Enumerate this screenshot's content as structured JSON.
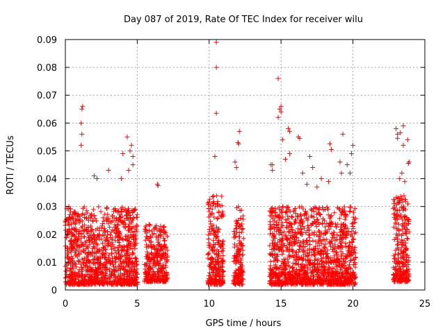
{
  "chart_data": {
    "type": "scatter",
    "title": "Day 087 of 2019, Rate Of TEC Index for receiver wilu",
    "xlabel": "GPS time / hours",
    "ylabel": "ROTI / TECUs",
    "xlim": [
      0,
      25
    ],
    "ylim": [
      0,
      0.09
    ],
    "xticks": [
      0,
      5,
      10,
      15,
      20,
      25
    ],
    "xtick_labels": [
      "0",
      "5",
      "10",
      "15",
      "20",
      "25"
    ],
    "yticks": [
      0,
      0.01,
      0.02,
      0.03,
      0.04,
      0.05,
      0.06,
      0.07,
      0.08,
      0.09
    ],
    "ytick_labels": [
      "0",
      "0.01",
      "0.02",
      "0.03",
      "0.04",
      "0.05",
      "0.06",
      "0.07",
      "0.08",
      "0.09"
    ],
    "grid": true,
    "marker": "+",
    "color": "#ff0000",
    "dense_segments": [
      {
        "name": "segment-0-5h",
        "x_range": [
          0,
          5
        ],
        "y_range": [
          0.002,
          0.03
        ],
        "count": 1100
      },
      {
        "name": "segment-5.5-7h",
        "x_range": [
          5.5,
          7.1
        ],
        "y_range": [
          0.003,
          0.024
        ],
        "count": 320
      },
      {
        "name": "segment-10-11h",
        "x_range": [
          9.9,
          11.0
        ],
        "y_range": [
          0.002,
          0.034
        ],
        "count": 260
      },
      {
        "name": "segment-11.7-12.4h",
        "x_range": [
          11.7,
          12.4
        ],
        "y_range": [
          0.002,
          0.03
        ],
        "count": 160
      },
      {
        "name": "segment-14.2-20.2h",
        "x_range": [
          14.2,
          20.2
        ],
        "y_range": [
          0.002,
          0.03
        ],
        "count": 1300
      },
      {
        "name": "segment-22.8-23.9h",
        "x_range": [
          22.8,
          23.9
        ],
        "y_range": [
          0.003,
          0.034
        ],
        "count": 260
      }
    ],
    "notable_points": [
      [
        10.5,
        0.089
      ],
      [
        10.5,
        0.08
      ],
      [
        10.5,
        0.0635
      ],
      [
        10.4,
        0.048
      ],
      [
        1.2,
        0.066
      ],
      [
        1.15,
        0.065
      ],
      [
        1.1,
        0.06
      ],
      [
        1.15,
        0.056
      ],
      [
        1.1,
        0.052
      ],
      [
        4.3,
        0.055
      ],
      [
        4.6,
        0.052
      ],
      [
        4.5,
        0.05
      ],
      [
        4.0,
        0.049
      ],
      [
        4.7,
        0.048
      ],
      [
        3.0,
        0.043
      ],
      [
        2.0,
        0.041
      ],
      [
        2.2,
        0.04
      ],
      [
        3.9,
        0.04
      ],
      [
        4.4,
        0.043
      ],
      [
        4.7,
        0.045
      ],
      [
        6.4,
        0.038
      ],
      [
        6.45,
        0.0375
      ],
      [
        12.1,
        0.057
      ],
      [
        12.0,
        0.053
      ],
      [
        12.05,
        0.0525
      ],
      [
        11.8,
        0.046
      ],
      [
        11.9,
        0.044
      ],
      [
        14.8,
        0.076
      ],
      [
        15.0,
        0.066
      ],
      [
        14.9,
        0.065
      ],
      [
        15.0,
        0.064
      ],
      [
        14.8,
        0.062
      ],
      [
        15.5,
        0.058
      ],
      [
        15.6,
        0.057
      ],
      [
        16.2,
        0.055
      ],
      [
        16.3,
        0.0545
      ],
      [
        15.1,
        0.054
      ],
      [
        14.3,
        0.045
      ],
      [
        14.4,
        0.045
      ],
      [
        14.4,
        0.043
      ],
      [
        15.3,
        0.047
      ],
      [
        15.6,
        0.049
      ],
      [
        16.5,
        0.042
      ],
      [
        17.0,
        0.048
      ],
      [
        17.2,
        0.044
      ],
      [
        18.4,
        0.0525
      ],
      [
        18.5,
        0.0505
      ],
      [
        19.1,
        0.046
      ],
      [
        19.2,
        0.042
      ],
      [
        19.6,
        0.045
      ],
      [
        19.8,
        0.042
      ],
      [
        20.0,
        0.052
      ],
      [
        19.9,
        0.049
      ],
      [
        19.3,
        0.056
      ],
      [
        17.8,
        0.04
      ],
      [
        18.3,
        0.039
      ],
      [
        16.8,
        0.038
      ],
      [
        17.5,
        0.037
      ],
      [
        23.0,
        0.058
      ],
      [
        23.1,
        0.056
      ],
      [
        23.5,
        0.059
      ],
      [
        23.3,
        0.0565
      ],
      [
        23.1,
        0.0545
      ],
      [
        23.5,
        0.052
      ],
      [
        23.8,
        0.054
      ],
      [
        23.9,
        0.046
      ],
      [
        23.85,
        0.0455
      ],
      [
        23.4,
        0.042
      ],
      [
        23.25,
        0.04
      ],
      [
        23.6,
        0.039
      ]
    ]
  }
}
